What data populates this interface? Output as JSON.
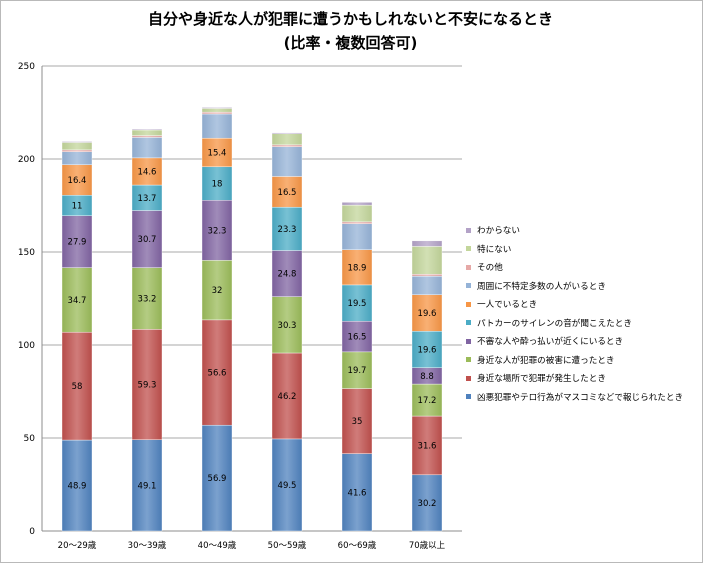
{
  "chart_data": {
    "type": "bar",
    "stacked": true,
    "title": "自分や身近な人が犯罪に遭うかもしれないと不安になるとき",
    "subtitle": "(比率・複数回答可)",
    "xlabel": "",
    "ylabel": "",
    "ylim": [
      0,
      250
    ],
    "yticks": [
      0,
      50,
      100,
      150,
      200,
      250
    ],
    "grid": true,
    "legend_position": "right",
    "categories": [
      "20～29歳",
      "30～39歳",
      "40～49歳",
      "50～59歳",
      "60～69歳",
      "70歳以上"
    ],
    "series": [
      {
        "name": "凶悪犯罪やテロ行為がマスコミなどで報じられたとき",
        "color": "#4f81bd",
        "values": [
          48.9,
          49.1,
          56.9,
          49.5,
          41.6,
          30.2
        ],
        "labels": [
          "48.9",
          "49.1",
          "56.9",
          "49.5",
          "41.6",
          "30.2"
        ]
      },
      {
        "name": "身近な場所で犯罪が発生したとき",
        "color": "#c0504d",
        "values": [
          58,
          59.3,
          56.6,
          46.2,
          35,
          31.6
        ],
        "labels": [
          "58",
          "59.3",
          "56.6",
          "46.2",
          "35",
          "31.6"
        ]
      },
      {
        "name": "身近な人が犯罪の被害に遭ったとき",
        "color": "#9bbb59",
        "values": [
          34.7,
          33.2,
          32,
          30.3,
          19.7,
          17.2
        ],
        "labels": [
          "34.7",
          "33.2",
          "32",
          "30.3",
          "19.7",
          "17.2"
        ]
      },
      {
        "name": "不審な人や酔っ払いが近くにいるとき",
        "color": "#8064a2",
        "values": [
          27.9,
          30.7,
          32.3,
          24.8,
          16.5,
          8.8
        ],
        "labels": [
          "27.9",
          "30.7",
          "32.3",
          "24.8",
          "16.5",
          "8.8"
        ]
      },
      {
        "name": "パトカーのサイレンの音が聞こえたとき",
        "color": "#4bacc6",
        "values": [
          11,
          13.7,
          18,
          23.3,
          19.5,
          19.6
        ],
        "labels": [
          "11",
          "13.7",
          "18",
          "23.3",
          "19.5",
          "19.6"
        ]
      },
      {
        "name": "一人でいるとき",
        "color": "#f79646",
        "values": [
          16.4,
          14.6,
          15.4,
          16.5,
          18.9,
          19.6
        ],
        "labels": [
          "16.4",
          "14.6",
          "15.4",
          "16.5",
          "18.9",
          "19.6"
        ]
      },
      {
        "name": "周囲に不特定多数の人がいるとき",
        "color": "#95b3d7",
        "values": [
          7,
          11,
          13,
          16,
          14,
          10
        ],
        "labels": [
          "",
          "",
          "",
          "",
          "",
          ""
        ]
      },
      {
        "name": "その他",
        "color": "#e6a9a7",
        "values": [
          1,
          1,
          1,
          1,
          1,
          1
        ],
        "labels": [
          "",
          "",
          "",
          "",
          "",
          ""
        ]
      },
      {
        "name": "特にない",
        "color": "#c3d69b",
        "values": [
          4,
          3,
          2,
          6,
          9,
          15
        ],
        "labels": [
          "",
          "",
          "",
          "",
          "",
          ""
        ]
      },
      {
        "name": "わからない",
        "color": "#b3a2c7",
        "values": [
          0.5,
          0.5,
          0.5,
          0.5,
          1.5,
          3
        ],
        "labels": [
          "",
          "",
          "",
          "",
          "",
          ""
        ]
      }
    ]
  }
}
